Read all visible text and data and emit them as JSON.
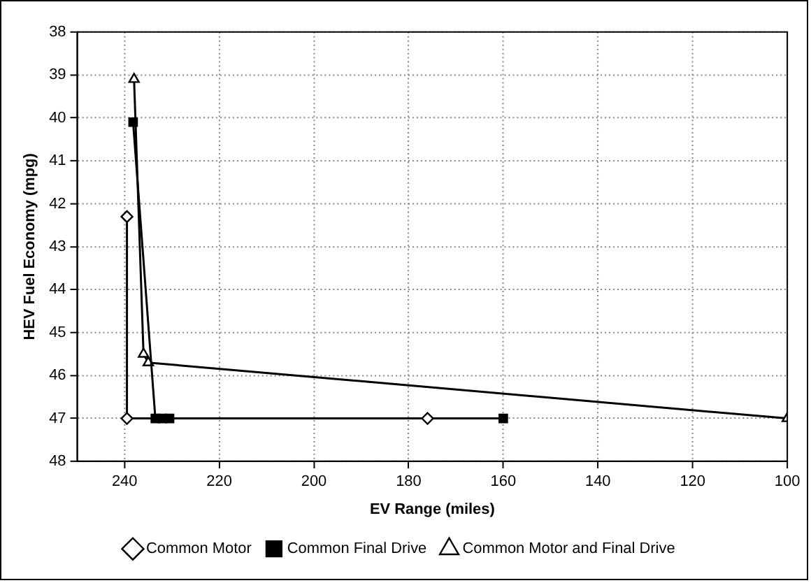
{
  "chart_data": {
    "type": "line",
    "xlabel": "EV Range (miles)",
    "ylabel": "HEV Fuel Economy (mpg)",
    "xlim": [
      250,
      100
    ],
    "xticks": [
      240,
      220,
      200,
      180,
      160,
      140,
      120,
      100
    ],
    "ylim": [
      48,
      38
    ],
    "yticks": [
      38,
      39,
      40,
      41,
      42,
      43,
      44,
      45,
      46,
      47,
      48
    ],
    "grid": true,
    "legend": "bottom",
    "line_style": "solid",
    "series": [
      {
        "name": "Common Motor",
        "color": "#000000",
        "marker": "diamond",
        "x": [
          239.5,
          239.5,
          176
        ],
        "values": [
          42.3,
          47,
          47
        ]
      },
      {
        "name": "Common Final Drive",
        "color": "#000000",
        "marker": "square",
        "x": [
          238.2,
          233.5,
          232,
          230.5,
          160
        ],
        "values": [
          40.1,
          47,
          47,
          47,
          47
        ]
      },
      {
        "name": "Common Motor and Final Drive",
        "color": "#000000",
        "marker": "triangle",
        "x": [
          238,
          236,
          235,
          100
        ],
        "values": [
          39.1,
          45.5,
          45.7,
          47
        ]
      }
    ]
  }
}
